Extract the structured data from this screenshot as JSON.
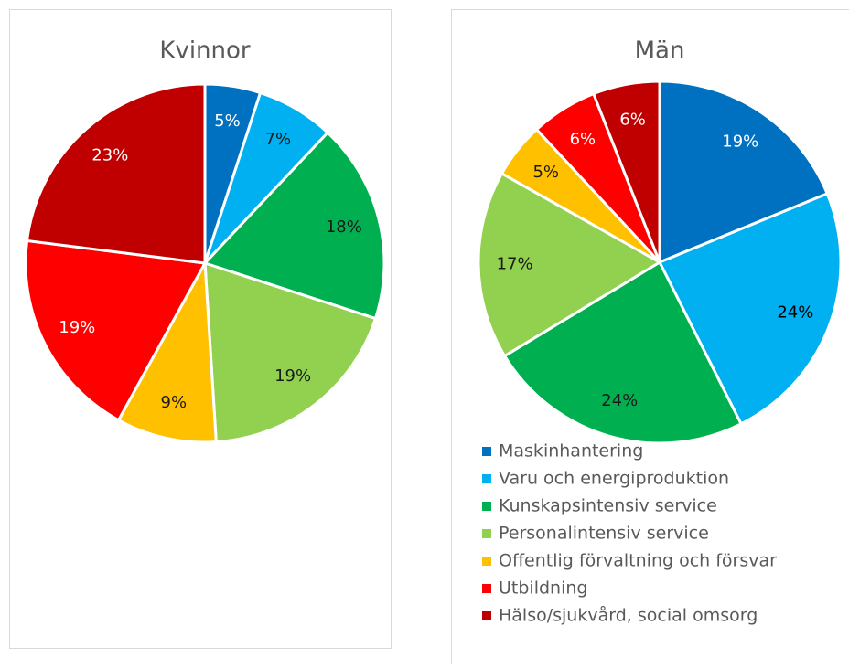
{
  "chart_data": [
    {
      "type": "pie",
      "title": "Kvinnor",
      "values": [
        5,
        7,
        18,
        19,
        9,
        19,
        23
      ],
      "value_labels": [
        "5%",
        "7%",
        "18%",
        "19%",
        "9%",
        "19%",
        "23%"
      ],
      "colors": [
        "#0070c0",
        "#00b0f0",
        "#00b050",
        "#92d050",
        "#ffc000",
        "#ff0000",
        "#c00000"
      ],
      "label_colors": [
        "#ffffff",
        "#1a1a1a",
        "#1a1a1a",
        "#1a1a1a",
        "#1a1a1a",
        "#ffffff",
        "#ffffff"
      ]
    },
    {
      "type": "pie",
      "title": "Män",
      "categories": [
        "Maskinhantering",
        "Varu och energiproduktion",
        "Kunskapsintensiv service",
        "Personalintensiv service",
        "Offentlig förvaltning och försvar",
        "Utbildning",
        "Hälso/sjukvård, social omsorg"
      ],
      "values": [
        19,
        24,
        24,
        17,
        5,
        6,
        6
      ],
      "value_labels": [
        "19%",
        "24%",
        "24%",
        "17%",
        "5%",
        "6%",
        "6%"
      ],
      "colors": [
        "#0070c0",
        "#00b0f0",
        "#00b050",
        "#92d050",
        "#ffc000",
        "#ff0000",
        "#c00000"
      ],
      "label_colors": [
        "#ffffff",
        "#000000",
        "#1a1a1a",
        "#1a1a1a",
        "#1a1a1a",
        "#ffffff",
        "#ffffff"
      ],
      "legend": "bottom"
    }
  ]
}
